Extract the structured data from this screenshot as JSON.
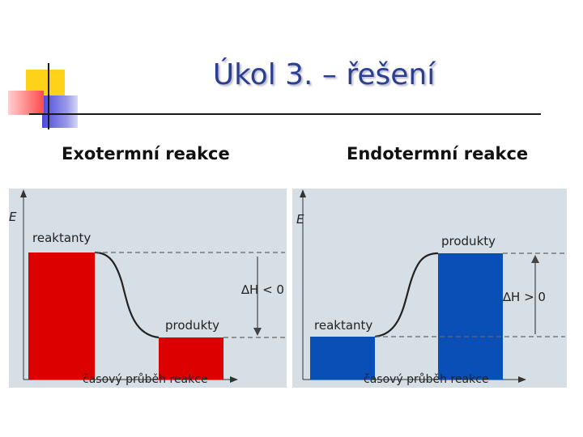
{
  "slide": {
    "title": "Úkol 3. – řešení"
  },
  "colors": {
    "title": "#2a3f8f",
    "panel_bg": "#d6dfe6",
    "exo_bar": "#dd0000",
    "endo_bar": "#0a4fb5",
    "deco_yellow": "#ffd21a",
    "deco_red": "#ff4a4a",
    "deco_blue": "#4a4ad8"
  },
  "diagrams": {
    "exo": {
      "heading": "Exotermní reakce",
      "axis_y": "E",
      "axis_x": "časový průběh reakce",
      "upper_label": "reaktanty",
      "lower_label": "produkty",
      "delta_label": "∆H < 0",
      "bar_color": "#dd0000"
    },
    "endo": {
      "heading": "Endotermní reakce",
      "axis_y": "E",
      "axis_x": "časový průběh reakce",
      "upper_label": "produkty",
      "lower_label": "reaktanty",
      "delta_label": "∆H > 0",
      "bar_color": "#0a4fb5"
    }
  }
}
